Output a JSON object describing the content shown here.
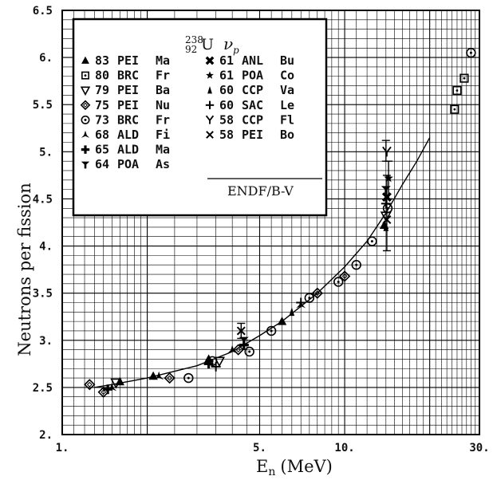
{
  "chart_data": {
    "type": "scatter",
    "xlabel": "E",
    "xlabel_sub": "n",
    "xlabel_unit": "(MeV)",
    "ylabel": "Neutrons per fission",
    "xscale": "log",
    "xlim": [
      1,
      30
    ],
    "ylim": [
      2,
      6.5
    ],
    "grid": true,
    "legend_position": "top-left",
    "legend_title": {
      "mass": "238",
      "charge": "92",
      "symbol": "U",
      "quantity": "ν",
      "quantity_sub": "p"
    },
    "xticks": [
      {
        "value": 1,
        "label": "1."
      },
      {
        "value": 5,
        "label": "5."
      },
      {
        "value": 10,
        "label": "10."
      },
      {
        "value": 30,
        "label": "30."
      }
    ],
    "yticks": [
      {
        "value": 2,
        "label": "2."
      },
      {
        "value": 2.5,
        "label": "2.5"
      },
      {
        "value": 3,
        "label": "3."
      },
      {
        "value": 3.5,
        "label": "3.5"
      },
      {
        "value": 4,
        "label": "4."
      },
      {
        "value": 4.5,
        "label": "4.5"
      },
      {
        "value": 5,
        "label": "5."
      },
      {
        "value": 5.5,
        "label": "5.5"
      },
      {
        "value": 6,
        "label": "6."
      },
      {
        "value": 6.5,
        "label": "6.5"
      }
    ],
    "series": [
      {
        "year": "83",
        "lab": "PEI",
        "author": "Ma",
        "marker": "triangle-up",
        "points": [
          [
            1.6,
            2.56
          ],
          [
            2.1,
            2.62
          ],
          [
            3.3,
            2.8
          ],
          [
            6.0,
            3.2
          ],
          [
            13.8,
            4.22
          ]
        ]
      },
      {
        "year": "80",
        "lab": "BRC",
        "author": "Fr",
        "marker": "square-dot",
        "points": [
          [
            24.5,
            5.45
          ],
          [
            25.0,
            5.65
          ],
          [
            26.5,
            5.78
          ]
        ]
      },
      {
        "year": "79",
        "lab": "PEI",
        "author": "Ba",
        "marker": "triangle-down",
        "points": [
          [
            1.55,
            2.55
          ],
          [
            3.6,
            2.78
          ],
          [
            14.0,
            4.32
          ]
        ]
      },
      {
        "year": "75",
        "lab": "PEI",
        "author": "Nu",
        "marker": "diamond",
        "points": [
          [
            1.25,
            2.53
          ],
          [
            1.4,
            2.45
          ],
          [
            2.4,
            2.6
          ],
          [
            4.2,
            2.9
          ],
          [
            8.0,
            3.5
          ],
          [
            10.0,
            3.68
          ]
        ]
      },
      {
        "year": "73",
        "lab": "BRC",
        "author": "Fr",
        "marker": "circle-dot",
        "points": [
          [
            2.8,
            2.6
          ],
          [
            3.4,
            2.78
          ],
          [
            4.6,
            2.88
          ],
          [
            5.5,
            3.1
          ],
          [
            7.5,
            3.45
          ],
          [
            9.5,
            3.62
          ],
          [
            11.0,
            3.8
          ],
          [
            12.5,
            4.05
          ],
          [
            14.2,
            4.4
          ],
          [
            28.0,
            6.05
          ]
        ]
      },
      {
        "year": "68",
        "lab": "ALD",
        "author": "Fi",
        "marker": "three-point",
        "points": [
          [
            1.5,
            2.5
          ],
          [
            2.2,
            2.62
          ],
          [
            4.0,
            2.9
          ],
          [
            7.0,
            3.38
          ]
        ]
      },
      {
        "year": "65",
        "lab": "ALD",
        "author": "Ma",
        "marker": "plus",
        "points": [
          [
            1.45,
            2.48
          ],
          [
            3.3,
            2.75
          ],
          [
            4.4,
            2.95
          ]
        ]
      },
      {
        "year": "64",
        "lab": "POA",
        "author": "As",
        "marker": "tee-down",
        "points": [
          [
            4.4,
            3.0
          ],
          [
            14.0,
            4.6
          ]
        ]
      },
      {
        "year": "61",
        "lab": "ANL",
        "author": "Bu",
        "marker": "x-bold",
        "points": [
          [
            14.1,
            4.52
          ]
        ]
      },
      {
        "year": "61",
        "lab": "POA",
        "author": "Co",
        "marker": "star",
        "points": [
          [
            14.3,
            4.72
          ]
        ]
      },
      {
        "year": "60",
        "lab": "CCP",
        "author": "Va",
        "marker": "triangle-thin",
        "points": [
          [
            6.5,
            3.3
          ],
          [
            14.0,
            4.2
          ]
        ]
      },
      {
        "year": "60",
        "lab": "SAC",
        "author": "Le",
        "marker": "plus-thin",
        "points": [
          [
            3.5,
            2.72
          ],
          [
            7.0,
            3.4
          ],
          [
            14.0,
            4.45
          ]
        ]
      },
      {
        "year": "58",
        "lab": "CCP",
        "author": "Fl",
        "marker": "y-down",
        "points": [
          [
            14.1,
            5.0
          ]
        ]
      },
      {
        "year": "58",
        "lab": "PEI",
        "author": "Bo",
        "marker": "x",
        "points": [
          [
            4.3,
            3.1
          ],
          [
            14.1,
            4.28
          ]
        ]
      }
    ],
    "curve": {
      "name": "ENDF/B-V",
      "x": [
        1.3,
        1.5,
        2.0,
        3.0,
        4.0,
        5.0,
        6.0,
        8.0,
        10.0,
        12.0,
        14.0,
        16.0,
        18.0,
        20.0
      ],
      "y": [
        2.5,
        2.53,
        2.6,
        2.73,
        2.88,
        3.05,
        3.2,
        3.5,
        3.78,
        4.05,
        4.35,
        4.65,
        4.9,
        5.15
      ]
    },
    "error_bars": [
      {
        "x": 14.1,
        "low": 3.95,
        "high": 4.75
      },
      {
        "x": 14.3,
        "low": 4.5,
        "high": 4.9
      },
      {
        "x": 14.0,
        "low": 4.9,
        "high": 5.12
      },
      {
        "x": 4.3,
        "low": 3.02,
        "high": 3.18
      }
    ]
  }
}
